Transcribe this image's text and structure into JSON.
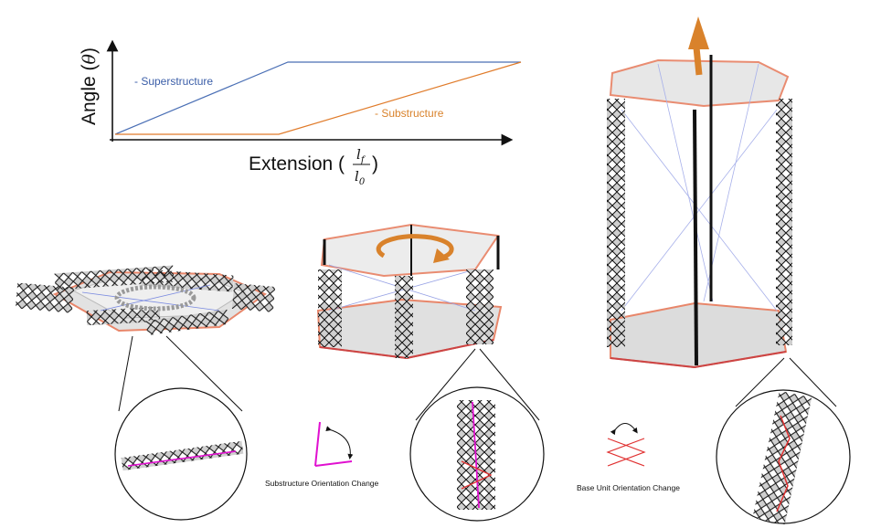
{
  "chart_data": {
    "type": "line",
    "ylabel": "Angle (θ)",
    "xlabel": "Extension",
    "series": [
      {
        "name": "- Superstructure",
        "color": "#4a6fb5"
      },
      {
        "name": "- Substructure",
        "color": "#e07b2a"
      }
    ]
  },
  "axis": {
    "y_title": "Angle (",
    "y_symbol": "θ",
    "y_close": ")",
    "x_title": "Extension (",
    "x_num": "l",
    "x_num_sub": "f",
    "x_den": "l",
    "x_den_sub": "0",
    "x_close": ")"
  },
  "legend": {
    "super": "- Superstructure",
    "sub": "- Substructure"
  },
  "captions": {
    "substructure_change": "Substructure Orientation Change",
    "base_unit_change": "Base Unit Orientation Change"
  },
  "colors": {
    "super": "#4a6fb5",
    "sub": "#e07b2a",
    "magenta": "#e010d0",
    "red": "#e03030",
    "panel": "#d9d9d9",
    "edge": "#e8866a"
  }
}
